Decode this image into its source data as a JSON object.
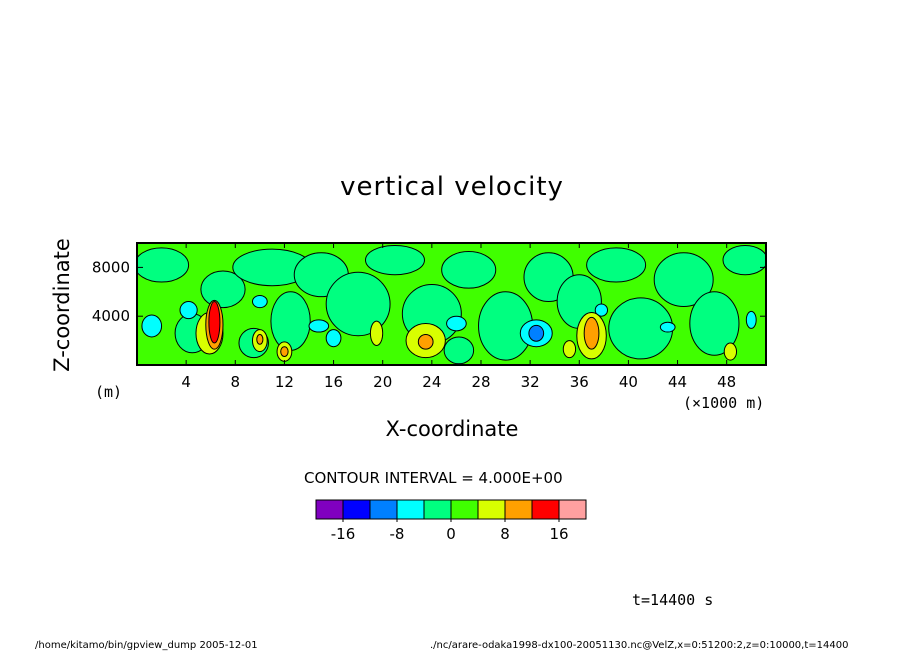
{
  "chart_data": {
    "type": "contour",
    "title": "vertical velocity",
    "xlabel": "X-coordinate",
    "ylabel": "Z-coordinate",
    "x_unit": "(×1000 m)",
    "y_unit": "(m)",
    "xlim": [
      0,
      51.2
    ],
    "ylim": [
      0,
      10000
    ],
    "x_ticks": [
      "4",
      "8",
      "12",
      "16",
      "20",
      "24",
      "28",
      "32",
      "36",
      "40",
      "44",
      "48"
    ],
    "y_ticks": [
      "4000",
      "8000"
    ],
    "contour_interval_label": "CONTOUR INTERVAL = 4.000E+00",
    "colorbar": {
      "colors": [
        "#8000c0",
        "#0000ff",
        "#0080ff",
        "#00ffff",
        "#00ff80",
        "#40ff00",
        "#d8ff00",
        "#ffa000",
        "#ff0000",
        "#ffa0a0"
      ],
      "labels": [
        "-16",
        "-8",
        "0",
        "8",
        "16"
      ]
    },
    "features": [
      {
        "x": 6.3,
        "z": 3400,
        "value": 16,
        "kind": "updraft"
      },
      {
        "x": 37.0,
        "z": 2500,
        "value": 12,
        "kind": "updraft"
      },
      {
        "x": 23.5,
        "z": 2000,
        "value": 8,
        "kind": "updraft"
      },
      {
        "x": 32.5,
        "z": 2600,
        "value": -8,
        "kind": "downdraft"
      }
    ]
  },
  "time_label": "t=14400 s",
  "footer_left": "/home/kitamo/bin/gpview_dump  2005-12-01",
  "footer_right": "./nc/arare-odaka1998-dx100-20051130.nc@VelZ,x=0:51200:2,z=0:10000,t=14400"
}
